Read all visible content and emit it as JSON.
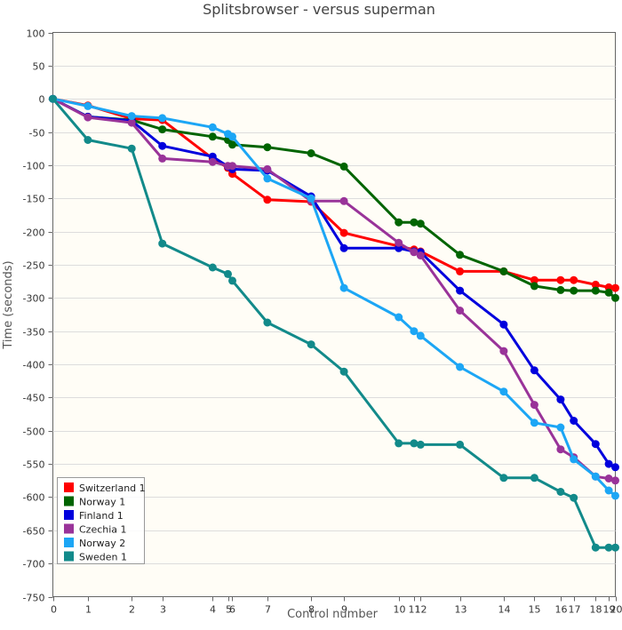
{
  "chart_data": {
    "type": "line",
    "title": "Splitsbrowser - versus superman",
    "xlabel": "Control number",
    "ylabel": "Time (seconds)",
    "ylim": [
      -750,
      100
    ],
    "yticks": [
      100,
      50,
      0,
      -50,
      -100,
      -150,
      -200,
      -250,
      -300,
      -350,
      -400,
      -450,
      -500,
      -550,
      -600,
      -650,
      -700,
      -750
    ],
    "xticks": [
      {
        "label": "0",
        "x": 0
      },
      {
        "label": "1",
        "x": 1
      },
      {
        "label": "2",
        "x": 2
      },
      {
        "label": "3",
        "x": 3
      },
      {
        "label": "4",
        "x": 4
      },
      {
        "label": "5",
        "x": 5
      },
      {
        "label": "6",
        "x": 6
      },
      {
        "label": "7",
        "x": 7
      },
      {
        "label": "8",
        "x": 8
      },
      {
        "label": "9",
        "x": 9
      },
      {
        "label": "10",
        "x": 10
      },
      {
        "label": "11",
        "x": 11
      },
      {
        "label": "12",
        "x": 12
      },
      {
        "label": "13",
        "x": 13
      },
      {
        "label": "14",
        "x": 14
      },
      {
        "label": "15",
        "x": 15
      },
      {
        "label": "16",
        "x": 16
      },
      {
        "label": "17",
        "x": 17
      },
      {
        "label": "18",
        "x": 18
      },
      {
        "label": "19",
        "x": 19
      },
      {
        "label": "20",
        "x": 20
      }
    ],
    "x_positions": [
      0,
      0.8,
      1.8,
      2.5,
      3.65,
      4.0,
      4.1,
      4.9,
      5.9,
      6.65,
      7.9,
      8.25,
      8.4,
      9.3,
      10.3,
      11.0,
      11.6,
      11.9,
      12.4,
      12.7,
      12.85
    ],
    "legend_position": "bottom-left",
    "grid": true,
    "series": [
      {
        "name": "Switzerland 1",
        "color": "#ff0000",
        "values": [
          0,
          -10,
          -30,
          -32,
          -90,
          -104,
          -113,
          -152,
          -155,
          -202,
          -222,
          -227,
          -230,
          -260,
          -260,
          -273,
          -273,
          -273,
          -280,
          -284,
          -285
        ]
      },
      {
        "name": "Norway 1",
        "color": "#006400",
        "values": [
          0,
          -27,
          -32,
          -46,
          -57,
          -62,
          -69,
          -73,
          -82,
          -102,
          -186,
          -186,
          -188,
          -235,
          -260,
          -282,
          -288,
          -289,
          -289,
          -292,
          -300
        ]
      },
      {
        "name": "Finland 1",
        "color": "#0000dd",
        "values": [
          0,
          -27,
          -33,
          -71,
          -87,
          -102,
          -106,
          -108,
          -147,
          -225,
          -225,
          -230,
          -231,
          -289,
          -340,
          -409,
          -453,
          -485,
          -520,
          -550,
          -555
        ]
      },
      {
        "name": "Czechia 1",
        "color": "#993399",
        "values": [
          0,
          -28,
          -36,
          -90,
          -95,
          -101,
          -101,
          -106,
          -154,
          -154,
          -217,
          -231,
          -236,
          -319,
          -380,
          -461,
          -528,
          -540,
          -569,
          -572,
          -575
        ]
      },
      {
        "name": "Norway 2",
        "color": "#1ca6f5",
        "values": [
          0,
          -11,
          -26,
          -29,
          -43,
          -53,
          -57,
          -120,
          -150,
          -285,
          -329,
          -350,
          -357,
          -404,
          -441,
          -488,
          -495,
          -543,
          -569,
          -590,
          -598
        ]
      },
      {
        "name": "Sweden 1",
        "color": "#128a8a",
        "values": [
          0,
          -62,
          -75,
          -218,
          -254,
          -264,
          -274,
          -337,
          -370,
          -411,
          -519,
          -519,
          -521,
          -521,
          -571,
          -571,
          -592,
          -601,
          -676,
          -676,
          -676
        ]
      }
    ]
  }
}
